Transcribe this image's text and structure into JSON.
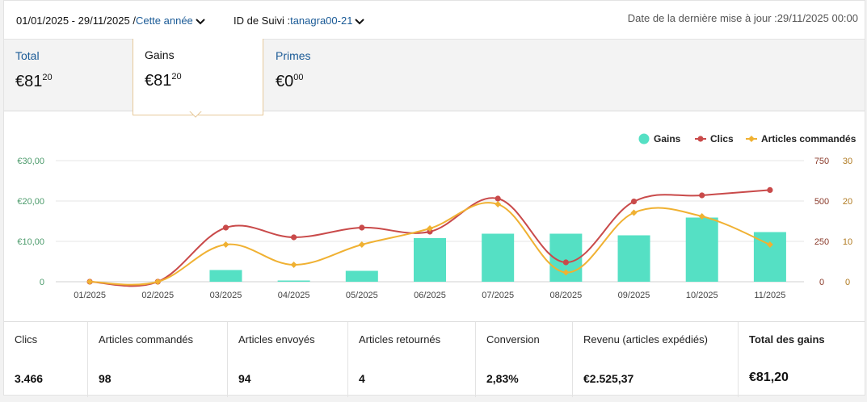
{
  "header": {
    "date_range": "01/01/2025 - 29/11/2025 /",
    "period_select": "Cette année",
    "tracking_label": "ID de Suivi :",
    "tracking_id": "tanagra00-21",
    "last_update": "Date de la dernière mise à jour :29/11/2025 00:00"
  },
  "tabs": [
    {
      "label": "Total",
      "currency": "€",
      "whole": "81",
      "cents": "20"
    },
    {
      "label": "Gains",
      "currency": "€",
      "whole": "81",
      "cents": "20"
    },
    {
      "label": "Primes",
      "currency": "€",
      "whole": "0",
      "cents": "00"
    }
  ],
  "chart_data": {
    "type": "bar",
    "categories": [
      "01/2025",
      "02/2025",
      "03/2025",
      "04/2025",
      "05/2025",
      "06/2025",
      "07/2025",
      "08/2025",
      "09/2025",
      "10/2025",
      "11/2025"
    ],
    "series": [
      {
        "name": "Gains",
        "kind": "bar",
        "axis": "left",
        "color": "#55e0c4",
        "values": [
          0,
          0,
          2.9,
          0.3,
          2.7,
          10.8,
          11.9,
          11.9,
          11.5,
          15.9,
          12.3
        ]
      },
      {
        "name": "Clics",
        "kind": "line",
        "axis": "right1",
        "color": "#c94a4a",
        "values": [
          0,
          0,
          335,
          275,
          335,
          310,
          515,
          120,
          497,
          535,
          568
        ]
      },
      {
        "name": "Articles commandés",
        "kind": "line",
        "axis": "right2",
        "color": "#f0b132",
        "values": [
          0,
          0,
          9.2,
          4.2,
          9.2,
          13.2,
          19.2,
          2.3,
          17.1,
          16.2,
          9.2
        ]
      }
    ],
    "left_axis": {
      "ticks": [
        "€30,00",
        "€20,00",
        "€10,00",
        "0"
      ],
      "range": [
        0,
        30
      ]
    },
    "right_axis_1": {
      "ticks": [
        "750",
        "500",
        "250",
        "0"
      ],
      "range": [
        0,
        750
      ]
    },
    "right_axis_2": {
      "ticks": [
        "30",
        "20",
        "10",
        "0"
      ],
      "range": [
        0,
        30
      ]
    },
    "legend": [
      "Gains",
      "Clics",
      "Articles commandés"
    ],
    "legend_position": "top-right"
  },
  "stats": [
    {
      "label": "Clics",
      "value": "3.466"
    },
    {
      "label": "Articles commandés",
      "value": "98"
    },
    {
      "label": "Articles envoyés",
      "value": "94"
    },
    {
      "label": "Articles retournés",
      "value": "4"
    },
    {
      "label": "Conversion",
      "value": "2,83%"
    },
    {
      "label": "Revenu (articles expédiés)",
      "value": "€2.525,37"
    },
    {
      "label": "Total des gains",
      "value": "€81,20"
    }
  ],
  "colors": {
    "link": "#1a5a96",
    "bars": "#55e0c4",
    "clics": "#c94a4a",
    "articles": "#f0b132",
    "left_axis": "#4a9a6a",
    "right_axis_1": "#8a3a2a",
    "right_axis_2": "#b07a20"
  }
}
